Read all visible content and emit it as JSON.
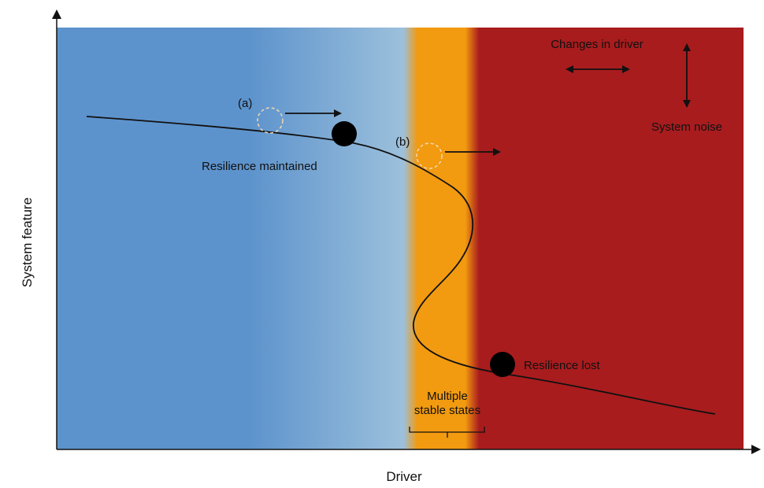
{
  "colors": {
    "stable_blue": "#5d93cc",
    "pale_blue": "#9cc0dc",
    "transition_orange": "#f29a10",
    "collapse_red": "#a81c1e",
    "ink": "#111111",
    "dashed_circle": "#f2d8b0"
  },
  "axes": {
    "x_label": "Driver",
    "y_label": "System feature"
  },
  "annotations": {
    "state_a": "(a)",
    "state_b": "(b)",
    "resilience_maintained": "Resilience maintained",
    "resilience_lost": "Resilience lost",
    "multiple_stable_states_line1": "Multiple",
    "multiple_stable_states_line2": "stable states",
    "changes_in_driver": "Changes in driver",
    "system_noise": "System noise"
  },
  "icons": {
    "ball": "filled-circle",
    "previous_position": "dashed-circle",
    "push_direction": "arrow-right",
    "driver_change": "double-arrow-horizontal",
    "noise": "double-arrow-vertical"
  }
}
